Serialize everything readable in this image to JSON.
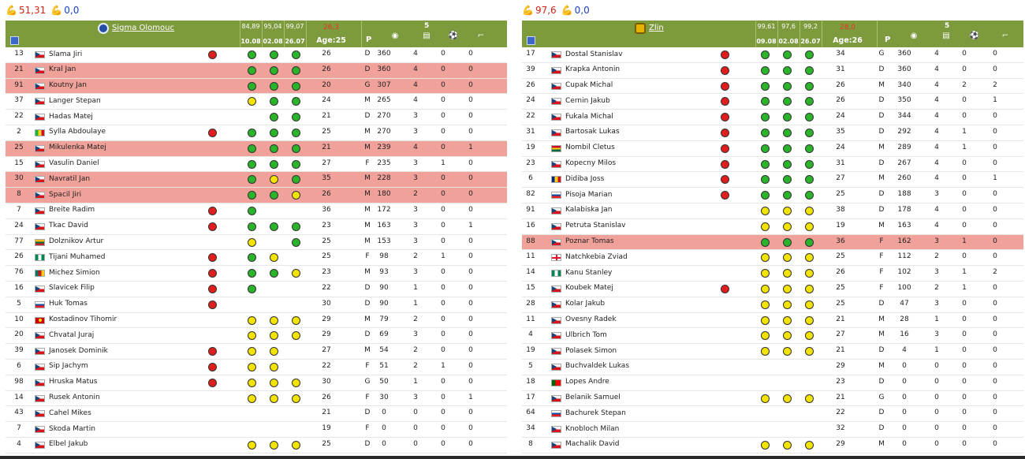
{
  "teams": [
    {
      "id": "left",
      "summary": {
        "value1": "51,31",
        "value2": "0,0"
      },
      "name": "Sigma Olomouc",
      "crest": "sigma",
      "header": {
        "perf_top": [
          "84,89",
          "95,04",
          "99,07"
        ],
        "perf_bottom": [
          "10.08",
          "02.08",
          "26.07"
        ],
        "rating": "26,3",
        "age": "Age:25",
        "p": "P",
        "count": "5"
      },
      "rows": [
        {
          "no": "13",
          "flag": "cz",
          "name": "Slama Jiri",
          "red": false,
          "s": "r",
          "f": [
            "g",
            "g",
            "g"
          ],
          "age": "26",
          "pos": "D",
          "mins": "360",
          "gp": "4",
          "g": "0",
          "a": "0"
        },
        {
          "no": "21",
          "flag": "cz",
          "name": "Kral Jan",
          "red": true,
          "s": "",
          "f": [
            "g",
            "g",
            "g"
          ],
          "age": "26",
          "pos": "D",
          "mins": "360",
          "gp": "4",
          "g": "0",
          "a": "0"
        },
        {
          "no": "91",
          "flag": "cz",
          "name": "Koutny Jan",
          "red": true,
          "s": "",
          "f": [
            "g",
            "g",
            "g"
          ],
          "age": "20",
          "pos": "G",
          "mins": "307",
          "gp": "4",
          "g": "0",
          "a": "0"
        },
        {
          "no": "37",
          "flag": "cz",
          "name": "Langer Stepan",
          "red": false,
          "s": "",
          "f": [
            "y",
            "g",
            "g"
          ],
          "age": "24",
          "pos": "M",
          "mins": "265",
          "gp": "4",
          "g": "0",
          "a": "0"
        },
        {
          "no": "22",
          "flag": "cz",
          "name": "Hadas Matej",
          "red": false,
          "s": "",
          "f": [
            "",
            "g",
            "g"
          ],
          "age": "21",
          "pos": "D",
          "mins": "270",
          "gp": "3",
          "g": "0",
          "a": "0"
        },
        {
          "no": "2",
          "flag": "ml",
          "name": "Sylla Abdoulaye",
          "red": false,
          "s": "r",
          "f": [
            "g",
            "g",
            "g"
          ],
          "age": "25",
          "pos": "M",
          "mins": "270",
          "gp": "3",
          "g": "0",
          "a": "0"
        },
        {
          "no": "25",
          "flag": "cz",
          "name": "Mikulenka Matej",
          "red": true,
          "s": "",
          "f": [
            "g",
            "g",
            "g"
          ],
          "age": "21",
          "pos": "M",
          "mins": "239",
          "gp": "4",
          "g": "0",
          "a": "1"
        },
        {
          "no": "15",
          "flag": "cz",
          "name": "Vasulin Daniel",
          "red": false,
          "s": "",
          "f": [
            "g",
            "g",
            "g"
          ],
          "age": "27",
          "pos": "F",
          "mins": "235",
          "gp": "3",
          "g": "1",
          "a": "0"
        },
        {
          "no": "30",
          "flag": "cz",
          "name": "Navratil Jan",
          "red": true,
          "s": "",
          "f": [
            "g",
            "y",
            "g"
          ],
          "age": "35",
          "pos": "M",
          "mins": "228",
          "gp": "3",
          "g": "0",
          "a": "0"
        },
        {
          "no": "8",
          "flag": "cz",
          "name": "Spacil Jiri",
          "red": true,
          "s": "",
          "f": [
            "g",
            "g",
            "y"
          ],
          "age": "26",
          "pos": "M",
          "mins": "180",
          "gp": "2",
          "g": "0",
          "a": "0"
        },
        {
          "no": "7",
          "flag": "cz",
          "name": "Breite Radim",
          "red": false,
          "s": "r",
          "f": [
            "g",
            "",
            ""
          ],
          "age": "36",
          "pos": "M",
          "mins": "172",
          "gp": "3",
          "g": "0",
          "a": "0"
        },
        {
          "no": "24",
          "flag": "cz",
          "name": "Tkac David",
          "red": false,
          "s": "r",
          "f": [
            "g",
            "g",
            "g"
          ],
          "age": "23",
          "pos": "M",
          "mins": "163",
          "gp": "3",
          "g": "0",
          "a": "1"
        },
        {
          "no": "77",
          "flag": "lt",
          "name": "Dolznikov Artur",
          "red": false,
          "s": "",
          "f": [
            "y",
            "",
            "g"
          ],
          "age": "25",
          "pos": "M",
          "mins": "153",
          "gp": "3",
          "g": "0",
          "a": "0"
        },
        {
          "no": "26",
          "flag": "ng",
          "name": "Tijani Muhamed",
          "red": false,
          "s": "r",
          "f": [
            "g",
            "y",
            ""
          ],
          "age": "25",
          "pos": "F",
          "mins": "98",
          "gp": "2",
          "g": "1",
          "a": "0"
        },
        {
          "no": "76",
          "flag": "cm",
          "name": "Michez Simion",
          "red": false,
          "s": "r",
          "f": [
            "g",
            "g",
            "y"
          ],
          "age": "23",
          "pos": "M",
          "mins": "93",
          "gp": "3",
          "g": "0",
          "a": "0"
        },
        {
          "no": "16",
          "flag": "cz",
          "name": "Slavicek Filip",
          "red": false,
          "s": "r",
          "f": [
            "g",
            "",
            ""
          ],
          "age": "22",
          "pos": "D",
          "mins": "90",
          "gp": "1",
          "g": "0",
          "a": "0"
        },
        {
          "no": "5",
          "flag": "sk",
          "name": "Huk Tomas",
          "red": false,
          "s": "r",
          "f": [
            "",
            "",
            ""
          ],
          "age": "30",
          "pos": "D",
          "mins": "90",
          "gp": "1",
          "g": "0",
          "a": "0"
        },
        {
          "no": "10",
          "flag": "mk",
          "name": "Kostadinov Tihomir",
          "red": false,
          "s": "",
          "f": [
            "y",
            "y",
            "y"
          ],
          "age": "29",
          "pos": "M",
          "mins": "79",
          "gp": "2",
          "g": "0",
          "a": "0"
        },
        {
          "no": "20",
          "flag": "cz",
          "name": "Chvatal Juraj",
          "red": false,
          "s": "",
          "f": [
            "y",
            "y",
            "y"
          ],
          "age": "29",
          "pos": "D",
          "mins": "69",
          "gp": "3",
          "g": "0",
          "a": "0"
        },
        {
          "no": "39",
          "flag": "cz",
          "name": "Janosek Dominik",
          "red": false,
          "s": "r",
          "f": [
            "y",
            "y",
            ""
          ],
          "age": "27",
          "pos": "M",
          "mins": "54",
          "gp": "2",
          "g": "0",
          "a": "0"
        },
        {
          "no": "6",
          "flag": "cz",
          "name": "Sip Jachym",
          "red": false,
          "s": "r",
          "f": [
            "y",
            "y",
            ""
          ],
          "age": "22",
          "pos": "F",
          "mins": "51",
          "gp": "2",
          "g": "1",
          "a": "0"
        },
        {
          "no": "98",
          "flag": "cz",
          "name": "Hruska Matus",
          "red": false,
          "s": "r",
          "f": [
            "y",
            "y",
            "y"
          ],
          "age": "30",
          "pos": "G",
          "mins": "50",
          "gp": "1",
          "g": "0",
          "a": "0"
        },
        {
          "no": "14",
          "flag": "cz",
          "name": "Rusek Antonin",
          "red": false,
          "s": "",
          "f": [
            "y",
            "y",
            "y"
          ],
          "age": "26",
          "pos": "F",
          "mins": "30",
          "gp": "3",
          "g": "0",
          "a": "1"
        },
        {
          "no": "43",
          "flag": "cz",
          "name": "Cahel Mikes",
          "red": false,
          "s": "",
          "f": [
            "",
            "",
            ""
          ],
          "age": "21",
          "pos": "D",
          "mins": "0",
          "gp": "0",
          "g": "0",
          "a": "0"
        },
        {
          "no": "7",
          "flag": "cz",
          "name": "Skoda Martin",
          "red": false,
          "s": "",
          "f": [
            "",
            "",
            ""
          ],
          "age": "19",
          "pos": "F",
          "mins": "0",
          "gp": "0",
          "g": "0",
          "a": "0"
        },
        {
          "no": "4",
          "flag": "cz",
          "name": "Elbel Jakub",
          "red": false,
          "s": "",
          "f": [
            "y",
            "y",
            "y"
          ],
          "age": "25",
          "pos": "D",
          "mins": "0",
          "gp": "0",
          "g": "0",
          "a": "0"
        }
      ]
    },
    {
      "id": "right",
      "summary": {
        "value1": "97,6",
        "value2": "0,0"
      },
      "name": "Zlin",
      "crest": "zlin",
      "header": {
        "perf_top": [
          "99,61",
          "97,6",
          "99,2"
        ],
        "perf_bottom": [
          "09.08",
          "02.08",
          "26.07"
        ],
        "rating": "28,0",
        "age": "Age:26",
        "p": "P",
        "count": "5"
      },
      "rows": [
        {
          "no": "17",
          "flag": "cz",
          "name": "Dostal Stanislav",
          "red": false,
          "s": "r",
          "f": [
            "g",
            "g",
            "g"
          ],
          "age": "34",
          "pos": "G",
          "mins": "360",
          "gp": "4",
          "g": "0",
          "a": "0"
        },
        {
          "no": "39",
          "flag": "cz",
          "name": "Krapka Antonin",
          "red": false,
          "s": "r",
          "f": [
            "g",
            "g",
            "g"
          ],
          "age": "31",
          "pos": "D",
          "mins": "360",
          "gp": "4",
          "g": "0",
          "a": "0"
        },
        {
          "no": "26",
          "flag": "cz",
          "name": "Cupak Michal",
          "red": false,
          "s": "r",
          "f": [
            "g",
            "g",
            "g"
          ],
          "age": "26",
          "pos": "M",
          "mins": "340",
          "gp": "4",
          "g": "2",
          "a": "2"
        },
        {
          "no": "24",
          "flag": "cz",
          "name": "Cernin Jakub",
          "red": false,
          "s": "r",
          "f": [
            "g",
            "g",
            "g"
          ],
          "age": "26",
          "pos": "D",
          "mins": "350",
          "gp": "4",
          "g": "0",
          "a": "1"
        },
        {
          "no": "22",
          "flag": "cz",
          "name": "Fukala Michal",
          "red": false,
          "s": "r",
          "f": [
            "g",
            "g",
            "g"
          ],
          "age": "24",
          "pos": "D",
          "mins": "344",
          "gp": "4",
          "g": "0",
          "a": "0"
        },
        {
          "no": "31",
          "flag": "cz",
          "name": "Bartosak Lukas",
          "red": false,
          "s": "r",
          "f": [
            "g",
            "g",
            "g"
          ],
          "age": "35",
          "pos": "D",
          "mins": "292",
          "gp": "4",
          "g": "1",
          "a": "0"
        },
        {
          "no": "19",
          "flag": "gh",
          "name": "Nombil Cletus",
          "red": false,
          "s": "r",
          "f": [
            "g",
            "g",
            "g"
          ],
          "age": "24",
          "pos": "M",
          "mins": "289",
          "gp": "4",
          "g": "1",
          "a": "0"
        },
        {
          "no": "23",
          "flag": "cz",
          "name": "Kopecny Milos",
          "red": false,
          "s": "r",
          "f": [
            "g",
            "g",
            "g"
          ],
          "age": "31",
          "pos": "D",
          "mins": "267",
          "gp": "4",
          "g": "0",
          "a": "0"
        },
        {
          "no": "6",
          "flag": "ro",
          "name": "Didiba Joss",
          "red": false,
          "s": "r",
          "f": [
            "g",
            "g",
            "g"
          ],
          "age": "27",
          "pos": "M",
          "mins": "260",
          "gp": "4",
          "g": "0",
          "a": "1"
        },
        {
          "no": "82",
          "flag": "sk",
          "name": "Pisoja Marian",
          "red": false,
          "s": "r",
          "f": [
            "g",
            "g",
            "g"
          ],
          "age": "25",
          "pos": "D",
          "mins": "188",
          "gp": "3",
          "g": "0",
          "a": "0"
        },
        {
          "no": "91",
          "flag": "cz",
          "name": "Kalabiska Jan",
          "red": false,
          "s": "",
          "f": [
            "y",
            "y",
            "y"
          ],
          "age": "38",
          "pos": "D",
          "mins": "178",
          "gp": "4",
          "g": "0",
          "a": "0"
        },
        {
          "no": "16",
          "flag": "cz",
          "name": "Petruta Stanislav",
          "red": false,
          "s": "",
          "f": [
            "y",
            "y",
            "y"
          ],
          "age": "19",
          "pos": "M",
          "mins": "163",
          "gp": "4",
          "g": "0",
          "a": "0"
        },
        {
          "no": "88",
          "flag": "cz",
          "name": "Poznar Tomas",
          "red": true,
          "s": "",
          "f": [
            "g",
            "g",
            "g"
          ],
          "age": "36",
          "pos": "F",
          "mins": "162",
          "gp": "3",
          "g": "1",
          "a": "0"
        },
        {
          "no": "11",
          "flag": "ge",
          "name": "Natchkebia Zviad",
          "red": false,
          "s": "",
          "f": [
            "y",
            "y",
            "y"
          ],
          "age": "25",
          "pos": "F",
          "mins": "112",
          "gp": "2",
          "g": "0",
          "a": "0"
        },
        {
          "no": "14",
          "flag": "ng",
          "name": "Kanu Stanley",
          "red": false,
          "s": "",
          "f": [
            "y",
            "y",
            "y"
          ],
          "age": "26",
          "pos": "F",
          "mins": "102",
          "gp": "3",
          "g": "1",
          "a": "2"
        },
        {
          "no": "15",
          "flag": "cz",
          "name": "Koubek Matej",
          "red": false,
          "s": "r",
          "f": [
            "y",
            "y",
            "y"
          ],
          "age": "25",
          "pos": "F",
          "mins": "100",
          "gp": "2",
          "g": "1",
          "a": "0"
        },
        {
          "no": "28",
          "flag": "cz",
          "name": "Kolar Jakub",
          "red": false,
          "s": "",
          "f": [
            "y",
            "y",
            "y"
          ],
          "age": "25",
          "pos": "D",
          "mins": "47",
          "gp": "3",
          "g": "0",
          "a": "0"
        },
        {
          "no": "11",
          "flag": "cz",
          "name": "Ovesny Radek",
          "red": false,
          "s": "",
          "f": [
            "y",
            "y",
            "y"
          ],
          "age": "21",
          "pos": "M",
          "mins": "28",
          "gp": "1",
          "g": "0",
          "a": "0"
        },
        {
          "no": "4",
          "flag": "cz",
          "name": "Ulbrich Tom",
          "red": false,
          "s": "",
          "f": [
            "y",
            "y",
            "y"
          ],
          "age": "27",
          "pos": "M",
          "mins": "16",
          "gp": "3",
          "g": "0",
          "a": "0"
        },
        {
          "no": "19",
          "flag": "cz",
          "name": "Polasek Simon",
          "red": false,
          "s": "",
          "f": [
            "y",
            "y",
            "y"
          ],
          "age": "21",
          "pos": "D",
          "mins": "4",
          "gp": "1",
          "g": "0",
          "a": "0"
        },
        {
          "no": "5",
          "flag": "cz",
          "name": "Buchvaldek Lukas",
          "red": false,
          "s": "",
          "f": [
            "",
            "",
            ""
          ],
          "age": "29",
          "pos": "M",
          "mins": "0",
          "gp": "0",
          "g": "0",
          "a": "0"
        },
        {
          "no": "18",
          "flag": "pt",
          "name": "Lopes Andre",
          "red": false,
          "s": "",
          "f": [
            "",
            "",
            ""
          ],
          "age": "23",
          "pos": "D",
          "mins": "0",
          "gp": "0",
          "g": "0",
          "a": "0"
        },
        {
          "no": "17",
          "flag": "cz",
          "name": "Belanik Samuel",
          "red": false,
          "s": "",
          "f": [
            "y",
            "y",
            "y"
          ],
          "age": "21",
          "pos": "G",
          "mins": "0",
          "gp": "0",
          "g": "0",
          "a": "0"
        },
        {
          "no": "64",
          "flag": "sk",
          "name": "Bachurek Stepan",
          "red": false,
          "s": "",
          "f": [
            "",
            "",
            ""
          ],
          "age": "22",
          "pos": "D",
          "mins": "0",
          "gp": "0",
          "g": "0",
          "a": "0"
        },
        {
          "no": "34",
          "flag": "cz",
          "name": "Knobloch Milan",
          "red": false,
          "s": "",
          "f": [
            "",
            "",
            ""
          ],
          "age": "32",
          "pos": "D",
          "mins": "0",
          "gp": "0",
          "g": "0",
          "a": "0"
        },
        {
          "no": "8",
          "flag": "cz",
          "name": "Machalik David",
          "red": false,
          "s": "",
          "f": [
            "y",
            "y",
            "y"
          ],
          "age": "29",
          "pos": "M",
          "mins": "0",
          "gp": "0",
          "g": "0",
          "a": "0"
        }
      ]
    }
  ],
  "icons": {
    "summary": "flexed-biceps-icon",
    "grid": "grid-icon",
    "minutes": "clock-icon",
    "games": "document-icon",
    "goals": "soccer-ball-icon",
    "assists": "boot-icon"
  },
  "colors": {
    "header_bg": "#7d9a3d",
    "highlight_row": "#f0a19a",
    "dot_green": "#29b429",
    "dot_yellow": "#f3e300",
    "dot_red": "#e01c1c",
    "rating_text": "#e8351f"
  }
}
